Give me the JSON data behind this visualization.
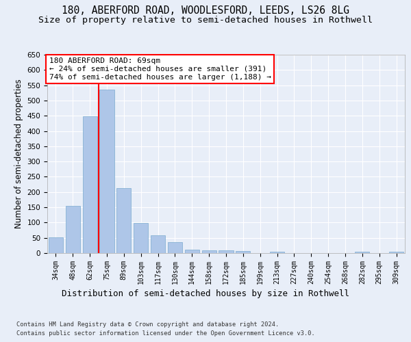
{
  "title1": "180, ABERFORD ROAD, WOODLESFORD, LEEDS, LS26 8LG",
  "title2": "Size of property relative to semi-detached houses in Rothwell",
  "xlabel": "Distribution of semi-detached houses by size in Rothwell",
  "ylabel": "Number of semi-detached properties",
  "footer1": "Contains HM Land Registry data © Crown copyright and database right 2024.",
  "footer2": "Contains public sector information licensed under the Open Government Licence v3.0.",
  "categories": [
    "34sqm",
    "48sqm",
    "62sqm",
    "75sqm",
    "89sqm",
    "103sqm",
    "117sqm",
    "130sqm",
    "144sqm",
    "158sqm",
    "172sqm",
    "185sqm",
    "199sqm",
    "213sqm",
    "227sqm",
    "240sqm",
    "254sqm",
    "268sqm",
    "282sqm",
    "295sqm",
    "309sqm"
  ],
  "values": [
    52,
    155,
    448,
    535,
    213,
    98,
    58,
    35,
    12,
    10,
    9,
    7,
    0,
    5,
    0,
    0,
    0,
    0,
    5,
    0,
    5
  ],
  "bar_color": "#aec6e8",
  "bar_edge_color": "#7aabcf",
  "vline_x": 2.5,
  "vline_color": "red",
  "annotation_text": "180 ABERFORD ROAD: 69sqm\n← 24% of semi-detached houses are smaller (391)\n74% of semi-detached houses are larger (1,188) →",
  "annotation_box_color": "white",
  "annotation_box_edge": "red",
  "ylim": [
    0,
    650
  ],
  "yticks": [
    0,
    50,
    100,
    150,
    200,
    250,
    300,
    350,
    400,
    450,
    500,
    550,
    600,
    650
  ],
  "bg_color": "#e8eef8",
  "plot_bg_color": "#e8eef8",
  "grid_color": "white",
  "title1_fontsize": 10.5,
  "title2_fontsize": 9.5,
  "xlabel_fontsize": 9,
  "ylabel_fontsize": 8.5
}
